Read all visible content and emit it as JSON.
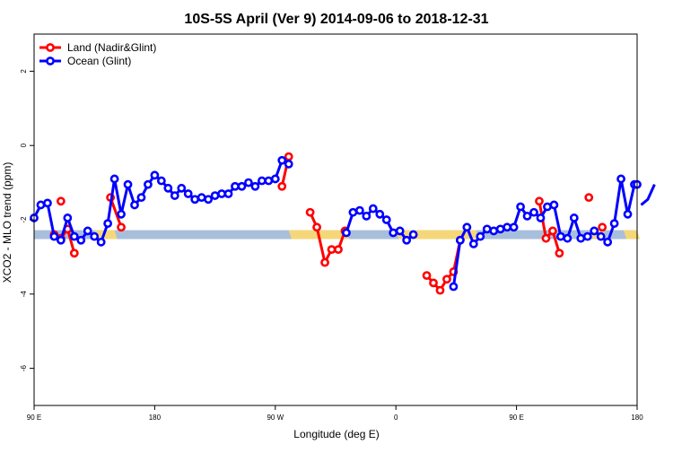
{
  "chart_data": {
    "type": "line",
    "title": "10S-5S April (Ver 9)   2014-09-06 to 2018-12-31",
    "xlabel": "Longitude (deg E)",
    "ylabel": "XCO2 - MLO trend (ppm)",
    "xlim": [
      90,
      540
    ],
    "ylim": [
      -7,
      3
    ],
    "x_ticks": [
      {
        "value": 90,
        "label": "90 E"
      },
      {
        "value": 180,
        "label": "180"
      },
      {
        "value": 270,
        "label": "90 W"
      },
      {
        "value": 360,
        "label": "0"
      },
      {
        "value": 450,
        "label": "90 E"
      },
      {
        "value": 540,
        "label": "180"
      }
    ],
    "y_ticks": [
      {
        "value": 2,
        "label": "2"
      },
      {
        "value": 0,
        "label": "0"
      },
      {
        "value": -2,
        "label": "-2"
      },
      {
        "value": -4,
        "label": "-4"
      },
      {
        "value": -6,
        "label": "-6"
      }
    ],
    "band": {
      "y_center": -2.4,
      "half_height": 0.12,
      "base_color": "#a8bfdc",
      "highlight_color": "#f5d77a",
      "highlight_ranges": [
        [
          135,
          150
        ],
        [
          280,
          323
        ],
        [
          360,
          420
        ],
        [
          505,
          515
        ],
        [
          530,
          540
        ]
      ]
    },
    "legend_position": "top-left",
    "series": [
      {
        "name": "Land (Nadir&Glint)",
        "color": "#ff0000",
        "segments": [
          [
            [
              105,
              -2.4
            ],
            [
              110,
              -2.5
            ],
            [
              115,
              -2.25
            ],
            [
              120,
              -2.9
            ]
          ],
          [
            [
              110,
              -1.5
            ]
          ],
          [
            [
              147,
              -1.4
            ],
            [
              155,
              -2.2
            ]
          ],
          [
            [
              275,
              -1.1
            ],
            [
              280,
              -0.3
            ]
          ],
          [
            [
              296,
              -1.8
            ],
            [
              301,
              -2.2
            ],
            [
              307,
              -3.15
            ],
            [
              312,
              -2.8
            ],
            [
              317,
              -2.8
            ],
            [
              322,
              -2.3
            ]
          ],
          [
            [
              383,
              -3.5
            ],
            [
              388,
              -3.7
            ],
            [
              393,
              -3.9
            ],
            [
              398,
              -3.6
            ],
            [
              403,
              -3.4
            ],
            [
              408,
              -2.55
            ]
          ],
          [
            [
              467,
              -1.5
            ],
            [
              472,
              -2.5
            ],
            [
              477,
              -2.3
            ],
            [
              482,
              -2.9
            ]
          ],
          [
            [
              504,
              -1.4
            ]
          ],
          [
            [
              514,
              -2.2
            ]
          ]
        ]
      },
      {
        "name": "Ocean (Glint)",
        "color": "#0000ff",
        "segments": [
          [
            [
              90,
              -1.95
            ],
            [
              95,
              -1.6
            ],
            [
              100,
              -1.55
            ],
            [
              105,
              -2.45
            ],
            [
              110,
              -2.55
            ],
            [
              115,
              -1.95
            ],
            [
              120,
              -2.45
            ],
            [
              125,
              -2.55
            ],
            [
              130,
              -2.3
            ],
            [
              135,
              -2.45
            ],
            [
              140,
              -2.6
            ],
            [
              145,
              -2.1
            ],
            [
              150,
              -0.9
            ],
            [
              155,
              -1.85
            ],
            [
              160,
              -1.05
            ],
            [
              165,
              -1.6
            ],
            [
              170,
              -1.4
            ],
            [
              175,
              -1.05
            ],
            [
              180,
              -0.8
            ],
            [
              185,
              -0.95
            ],
            [
              190,
              -1.15
            ],
            [
              195,
              -1.35
            ],
            [
              200,
              -1.15
            ],
            [
              205,
              -1.3
            ],
            [
              210,
              -1.45
            ],
            [
              215,
              -1.4
            ],
            [
              220,
              -1.45
            ],
            [
              225,
              -1.35
            ],
            [
              230,
              -1.3
            ],
            [
              235,
              -1.3
            ],
            [
              240,
              -1.1
            ],
            [
              245,
              -1.1
            ],
            [
              250,
              -1.0
            ],
            [
              255,
              -1.1
            ],
            [
              260,
              -0.95
            ],
            [
              265,
              -0.95
            ],
            [
              270,
              -0.9
            ],
            [
              275,
              -0.4
            ],
            [
              280,
              -0.5
            ]
          ],
          [
            [
              323,
              -2.35
            ],
            [
              328,
              -1.8
            ],
            [
              333,
              -1.75
            ],
            [
              338,
              -1.9
            ],
            [
              343,
              -1.7
            ],
            [
              348,
              -1.85
            ],
            [
              353,
              -2.0
            ],
            [
              358,
              -2.35
            ],
            [
              363,
              -2.3
            ],
            [
              368,
              -2.55
            ],
            [
              373,
              -2.4
            ]
          ],
          [
            [
              403,
              -3.8
            ],
            [
              408,
              -2.55
            ],
            [
              413,
              -2.2
            ],
            [
              418,
              -2.65
            ],
            [
              423,
              -2.45
            ],
            [
              428,
              -2.25
            ],
            [
              433,
              -2.3
            ],
            [
              438,
              -2.25
            ],
            [
              443,
              -2.2
            ],
            [
              448,
              -2.2
            ],
            [
              453,
              -1.65
            ],
            [
              458,
              -1.9
            ],
            [
              463,
              -1.8
            ],
            [
              468,
              -1.95
            ],
            [
              473,
              -1.65
            ],
            [
              478,
              -1.6
            ],
            [
              483,
              -2.45
            ],
            [
              488,
              -2.5
            ],
            [
              493,
              -1.95
            ],
            [
              498,
              -2.5
            ],
            [
              503,
              -2.45
            ],
            [
              508,
              -2.3
            ],
            [
              513,
              -2.45
            ],
            [
              518,
              -2.6
            ],
            [
              523,
              -2.1
            ],
            [
              528,
              -0.9
            ],
            [
              533,
              -1.85
            ],
            [
              538,
              -1.05
            ],
            [
              540,
              -1.05
            ]
          ],
          [
            [
              543,
              -1.6
            ],
            [
              548,
              -1.45
            ],
            [
              553,
              -1.05
            ]
          ]
        ]
      }
    ]
  }
}
